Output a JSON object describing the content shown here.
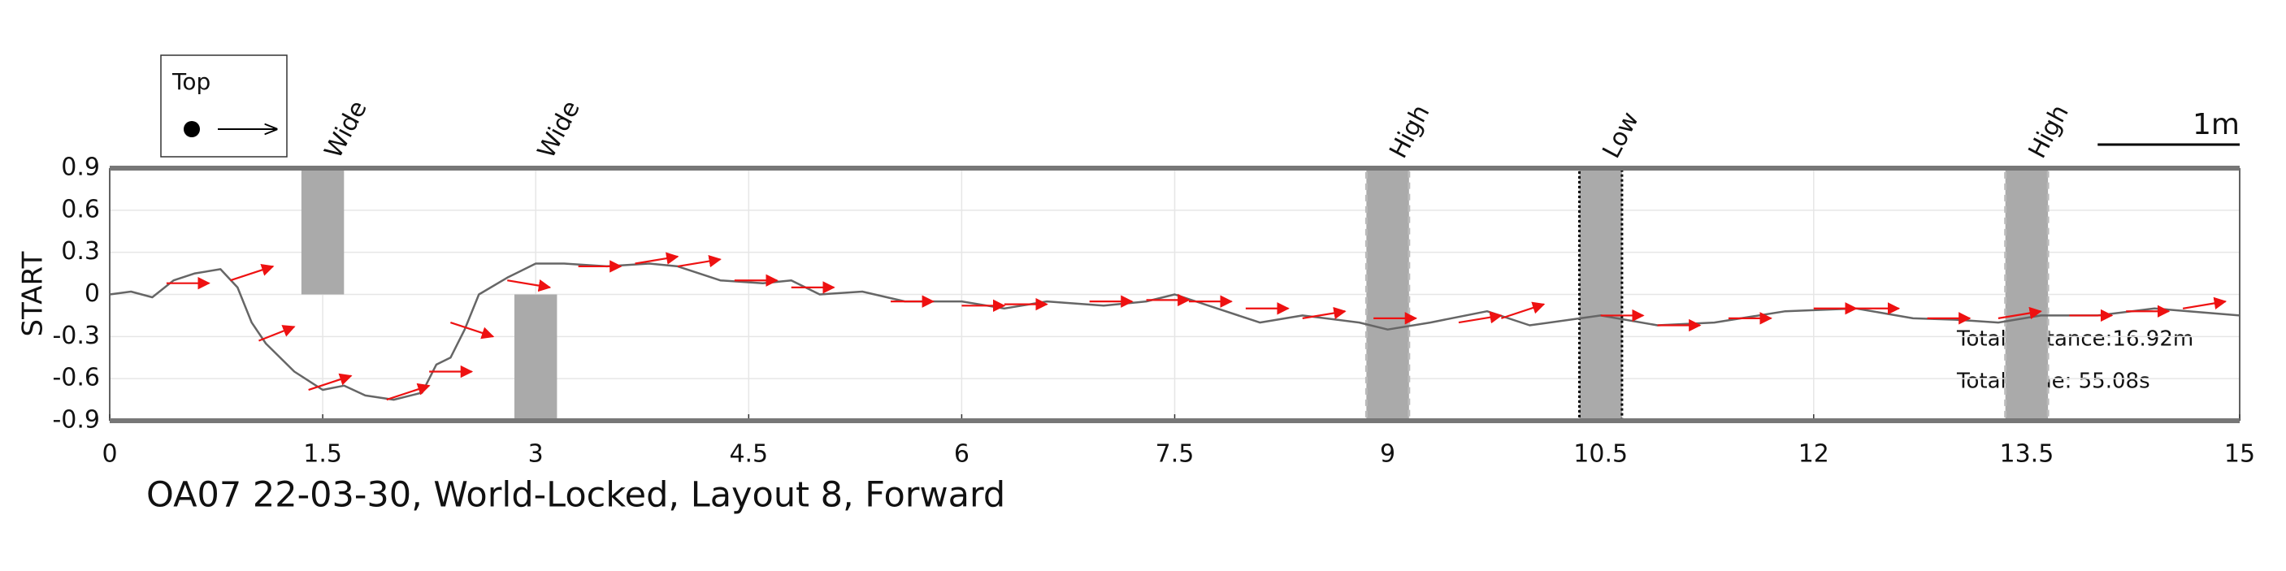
{
  "chart_data": {
    "type": "line",
    "title": "OA07 22-03-30, World-Locked, Layout 8, Forward",
    "y_label": "START",
    "legend_label": "Top",
    "scale_bar": {
      "label": "1m",
      "length": 1
    },
    "annotations": [
      "Total Distance:16.92m",
      "Total Time: 55.08s"
    ],
    "xlim": [
      0,
      15
    ],
    "xticks": [
      0,
      1.5,
      3,
      4.5,
      6,
      7.5,
      9,
      10.5,
      12,
      13.5,
      15
    ],
    "ylim": [
      -0.9,
      0.9
    ],
    "yticks": [
      0.9,
      0.6,
      0.3,
      0,
      -0.3,
      -0.6,
      -0.9
    ],
    "grid": true,
    "path": {
      "color": "#666666",
      "x": [
        0,
        0.15,
        0.3,
        0.45,
        0.6,
        0.78,
        0.9,
        1.0,
        1.1,
        1.3,
        1.5,
        1.65,
        1.8,
        2.0,
        2.2,
        2.3,
        2.4,
        2.5,
        2.6,
        2.8,
        3.0,
        3.2,
        3.5,
        3.8,
        4.0,
        4.3,
        4.6,
        4.8,
        5.0,
        5.3,
        5.6,
        6.0,
        6.3,
        6.6,
        7.0,
        7.3,
        7.5,
        7.8,
        8.1,
        8.4,
        8.8,
        9.0,
        9.3,
        9.7,
        10.0,
        10.5,
        10.9,
        11.3,
        11.8,
        12.3,
        12.7,
        13.0,
        13.3,
        13.6,
        14.0,
        14.4,
        15.0
      ],
      "y": [
        0,
        0.02,
        -0.02,
        0.1,
        0.15,
        0.18,
        0.05,
        -0.2,
        -0.35,
        -0.55,
        -0.68,
        -0.65,
        -0.72,
        -0.75,
        -0.7,
        -0.5,
        -0.45,
        -0.25,
        0.0,
        0.12,
        0.22,
        0.22,
        0.2,
        0.22,
        0.2,
        0.1,
        0.08,
        0.1,
        0.0,
        0.02,
        -0.05,
        -0.05,
        -0.1,
        -0.05,
        -0.08,
        -0.05,
        0.0,
        -0.1,
        -0.2,
        -0.15,
        -0.2,
        -0.25,
        -0.2,
        -0.12,
        -0.22,
        -0.15,
        -0.22,
        -0.2,
        -0.12,
        -0.1,
        -0.17,
        -0.18,
        -0.2,
        -0.15,
        -0.15,
        -0.1,
        -0.15
      ]
    },
    "arrows": {
      "color": "#ee1111",
      "x": [
        0.4,
        0.85,
        1.05,
        1.4,
        1.95,
        2.25,
        2.4,
        2.8,
        3.3,
        3.7,
        4.0,
        4.4,
        4.8,
        5.5,
        6.0,
        6.3,
        6.9,
        7.3,
        7.6,
        8.0,
        8.4,
        8.9,
        9.5,
        9.8,
        10.5,
        10.9,
        11.4,
        12.0,
        12.3,
        12.8,
        13.3,
        13.8,
        14.2,
        14.6
      ],
      "y": [
        0.08,
        0.1,
        -0.33,
        -0.68,
        -0.75,
        -0.55,
        -0.2,
        0.1,
        0.2,
        0.22,
        0.2,
        0.1,
        0.05,
        -0.05,
        -0.08,
        -0.07,
        -0.05,
        -0.04,
        -0.05,
        -0.1,
        -0.17,
        -0.17,
        -0.2,
        -0.17,
        -0.15,
        -0.22,
        -0.17,
        -0.1,
        -0.1,
        -0.17,
        -0.17,
        -0.15,
        -0.12,
        -0.1
      ],
      "u": [
        0.3,
        0.3,
        0.25,
        0.3,
        0.3,
        0.3,
        0.3,
        0.3,
        0.3,
        0.3,
        0.3,
        0.3,
        0.3,
        0.3,
        0.3,
        0.3,
        0.3,
        0.3,
        0.3,
        0.3,
        0.3,
        0.3,
        0.3,
        0.3,
        0.3,
        0.3,
        0.3,
        0.3,
        0.3,
        0.3,
        0.3,
        0.3,
        0.3,
        0.3
      ],
      "v": [
        0,
        0.1,
        0.1,
        0.1,
        0.1,
        0,
        -0.1,
        -0.05,
        0,
        0.05,
        0.05,
        0,
        0,
        0,
        0,
        0,
        0,
        0,
        0,
        0,
        0.05,
        0,
        0.05,
        0.1,
        0,
        0,
        0,
        0,
        0,
        0,
        0.05,
        0,
        0,
        0.05
      ]
    },
    "obstacles": [
      {
        "label": "Wide",
        "x": [
          1.35,
          1.65
        ],
        "y": [
          0,
          0.9
        ],
        "style": "solid"
      },
      {
        "label": "Wide",
        "x": [
          2.85,
          3.15
        ],
        "y": [
          -0.9,
          0
        ],
        "style": "solid"
      },
      {
        "label": "High",
        "x": [
          8.85,
          9.15
        ],
        "y": [
          -0.9,
          0.9
        ],
        "style": "dashed"
      },
      {
        "label": "Low",
        "x": [
          10.35,
          10.65
        ],
        "y": [
          -0.9,
          0.9
        ],
        "style": "dotted"
      },
      {
        "label": "High",
        "x": [
          13.35,
          13.65
        ],
        "y": [
          -0.9,
          0.9
        ],
        "style": "dashed"
      }
    ]
  }
}
